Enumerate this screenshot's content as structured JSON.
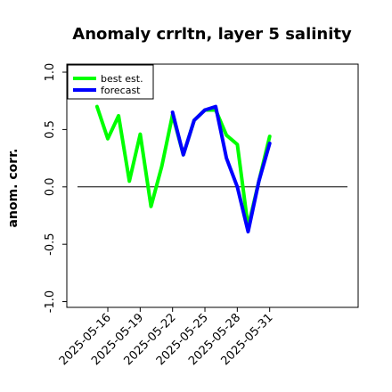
{
  "chart_data": {
    "type": "line",
    "title": "Anomaly crrltn, layer 5 salinity",
    "ylabel": "anom. corr.",
    "xlabel": "",
    "ylim": [
      -1.05,
      1.07
    ],
    "yticks": [
      -1.0,
      -0.5,
      0.0,
      0.5,
      1.0
    ],
    "ytick_labels": [
      "-1.0",
      "-0.5",
      "0.0",
      "0.5",
      "1.0"
    ],
    "x_range": [
      -3.8,
      23.2
    ],
    "xticks": [
      0,
      3,
      6,
      9,
      12,
      15
    ],
    "xtick_labels": [
      "2025-05-16",
      "2025-05-19",
      "2025-05-22",
      "2025-05-25",
      "2025-05-28",
      "2025-05-31"
    ],
    "xtick_colors": [
      "#000000",
      "#000000",
      "#228B22",
      "#000000",
      "#000000",
      "#000000"
    ],
    "zero_line": 0.0,
    "grid": false,
    "legend_position": "top-left",
    "series": [
      {
        "name": "best est.",
        "color": "#00ff00",
        "x": [
          -1,
          0,
          1,
          2,
          3,
          4,
          5,
          6,
          7,
          8,
          9,
          10,
          11,
          12,
          13,
          14,
          15
        ],
        "values": [
          0.7,
          0.42,
          0.62,
          0.05,
          0.46,
          -0.17,
          0.18,
          0.63,
          0.28,
          0.58,
          0.67,
          0.67,
          0.45,
          0.37,
          -0.35,
          0.05,
          0.44
        ]
      },
      {
        "name": "forecast",
        "color": "#0000ff",
        "x": [
          6,
          7,
          8,
          9,
          10,
          11,
          12,
          13,
          14,
          15
        ],
        "values": [
          0.65,
          0.28,
          0.58,
          0.67,
          0.7,
          0.25,
          0.0,
          -0.39,
          0.05,
          0.38
        ]
      }
    ]
  }
}
